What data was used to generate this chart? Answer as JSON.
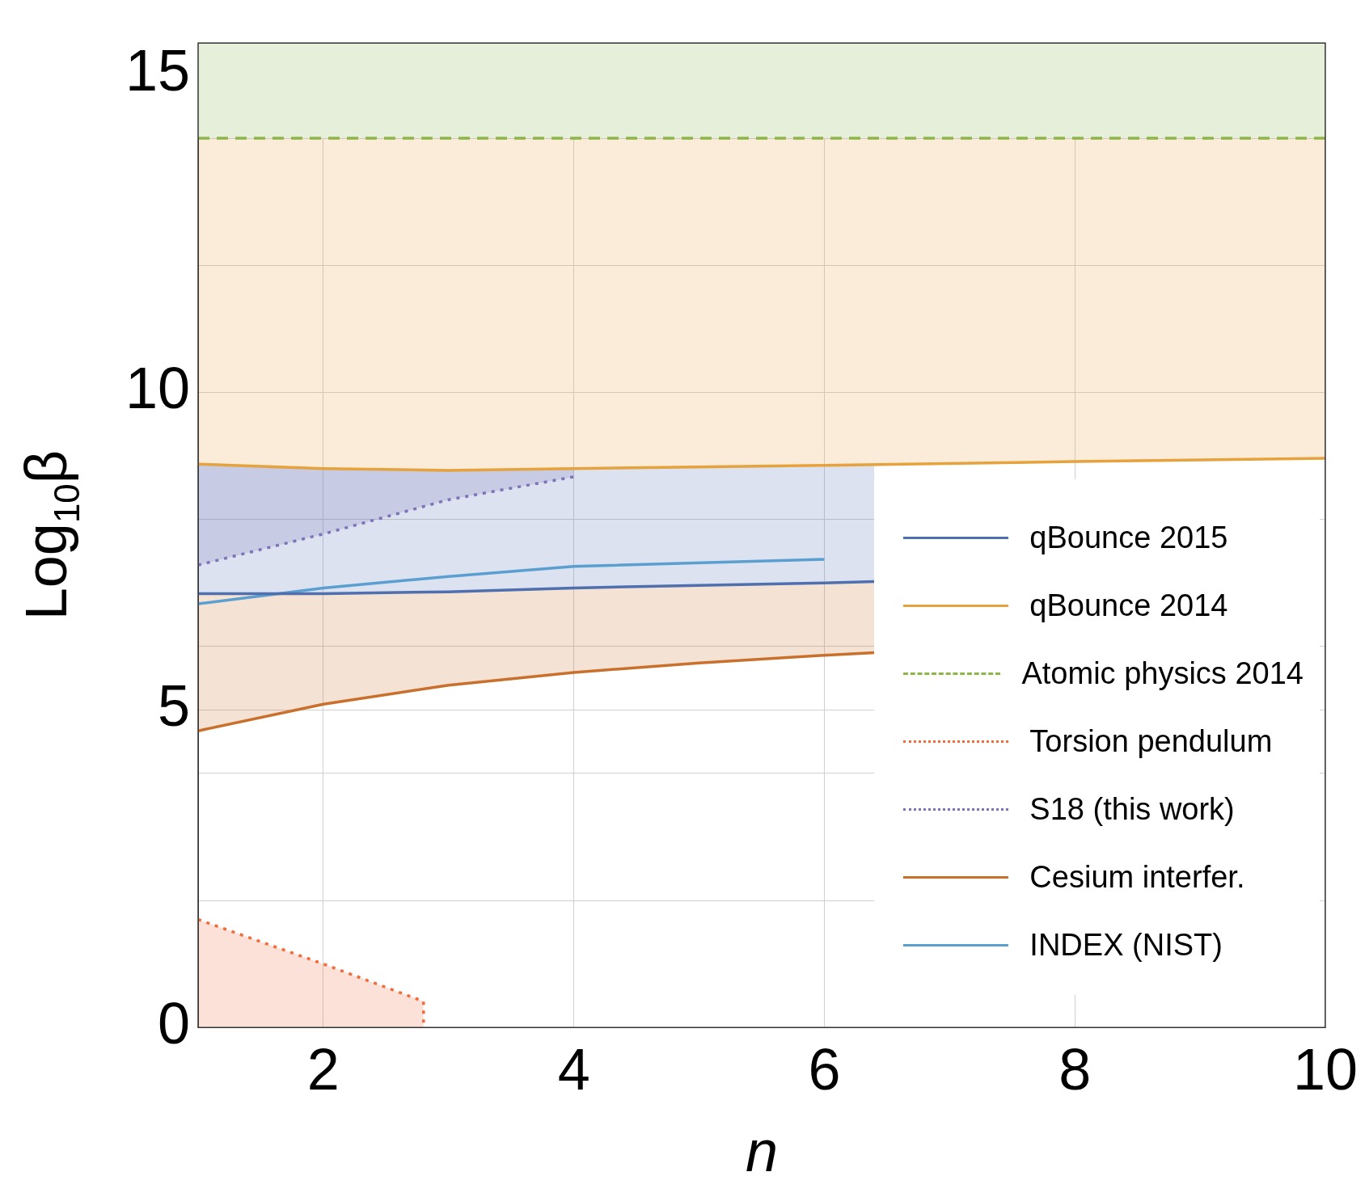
{
  "chart_data": {
    "type": "line",
    "xlabel": "n",
    "ylabel": "Log$_{10}$β",
    "xlim": [
      1,
      10
    ],
    "xticks": [
      2,
      4,
      6,
      8,
      10
    ],
    "ylim": [
      0,
      15.5
    ],
    "yticks": [
      0,
      {
        "value": 2,
        "label": null
      },
      {
        "value": 4,
        "label": null
      },
      5,
      {
        "value": 6,
        "label": null
      },
      {
        "value": 8,
        "label": null
      },
      10,
      {
        "value": 12,
        "label": null
      },
      {
        "value": 14,
        "label": null
      },
      15
    ],
    "grid": true,
    "legend": "bottom right",
    "marker": "none",
    "bands": [
      {
        "axis": "y",
        "from": 14,
        "to": 15.5,
        "color": "#e6efda"
      }
    ],
    "series": [
      {
        "name": "qBounce 2015",
        "color": "#4f6fae",
        "line_style": "solid",
        "x": [
          1,
          2,
          3,
          4,
          5,
          6,
          6.4
        ],
        "values": [
          6.83,
          6.83,
          6.86,
          6.92,
          6.96,
          7.0,
          7.02
        ],
        "lower": [
          6.83,
          6.83,
          6.86,
          6.92,
          6.96,
          7.0,
          7.02
        ],
        "upper": [
          8.87,
          8.8,
          8.77,
          8.8,
          8.82,
          8.85,
          8.86
        ]
      },
      {
        "name": "qBounce 2014",
        "color": "#e6a23c",
        "line_style": "solid",
        "x": [
          1,
          2,
          3,
          4,
          6,
          8,
          10
        ],
        "values": [
          8.87,
          8.8,
          8.77,
          8.8,
          8.85,
          8.91,
          8.96
        ],
        "lower": [
          8.87,
          8.8,
          8.77,
          8.8,
          8.85,
          8.91,
          8.96
        ],
        "upper": [
          14,
          14,
          14,
          14,
          14,
          14,
          14
        ]
      },
      {
        "name": "Atomic physics 2014",
        "color": "#8db547",
        "line_style": "dashed",
        "x": [
          1,
          10
        ],
        "values": [
          14,
          14
        ]
      },
      {
        "name": "Torsion pendulum",
        "color": "#f26b3a",
        "line_style": "dotted",
        "x": [
          1,
          2,
          2.8,
          2.8
        ],
        "values": [
          1.7,
          1.0,
          0.41,
          0
        ],
        "lower": [
          0,
          0,
          0,
          0
        ],
        "upper": [
          1.7,
          1.0,
          0.41,
          0
        ]
      },
      {
        "name": "S18 (this work)",
        "color": "#7f72b8",
        "line_style": "dotted",
        "x": [
          1,
          2,
          3,
          4
        ],
        "values": [
          7.28,
          7.77,
          8.31,
          8.67
        ],
        "lower": [
          7.28,
          7.77,
          8.31,
          8.67
        ],
        "upper": [
          8.87,
          8.8,
          8.77,
          8.8
        ]
      },
      {
        "name": "Cesium interfer.",
        "color": "#c8702c",
        "line_style": "solid",
        "x": [
          1,
          2,
          3,
          4,
          5,
          6,
          6.4
        ],
        "values": [
          4.67,
          5.09,
          5.39,
          5.59,
          5.74,
          5.86,
          5.9
        ],
        "lower": [
          4.67,
          5.09,
          5.39,
          5.59,
          5.74,
          5.86,
          5.9
        ],
        "upper": [
          6.83,
          6.83,
          6.86,
          6.92,
          6.96,
          7.0,
          7.02
        ]
      },
      {
        "name": "INDEX (NIST)",
        "color": "#5a9fd0",
        "line_style": "solid",
        "x": [
          1,
          2,
          3,
          4,
          6
        ],
        "values": [
          6.67,
          6.92,
          7.1,
          7.26,
          7.37
        ]
      }
    ]
  }
}
